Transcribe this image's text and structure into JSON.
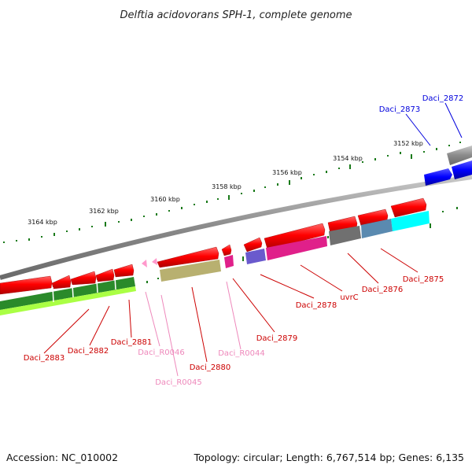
{
  "title": "Delftia acidovorans SPH-1, complete genome",
  "footer": {
    "accession": "Accession: NC_010002",
    "summary": "Topology: circular; Length: 6,767,514 bp; Genes: 6,135"
  },
  "scale_labels": [
    "3152 kbp",
    "3154 kbp",
    "3156 kbp",
    "3158 kbp",
    "3160 kbp",
    "3162 kbp",
    "3164 kbp"
  ],
  "gene_labels": [
    {
      "text": "Daci_2872",
      "color": "#0000dd"
    },
    {
      "text": "Daci_2873",
      "color": "#0000dd"
    },
    {
      "text": "Daci_2875",
      "color": "#cc0000"
    },
    {
      "text": "Daci_2876",
      "color": "#cc0000"
    },
    {
      "text": "uvrC",
      "color": "#cc0000"
    },
    {
      "text": "Daci_2878",
      "color": "#cc0000"
    },
    {
      "text": "Daci_2879",
      "color": "#cc0000"
    },
    {
      "text": "Daci_R0044",
      "color": "#ee88bb"
    },
    {
      "text": "Daci_2880",
      "color": "#cc0000"
    },
    {
      "text": "Daci_R0045",
      "color": "#ee88bb"
    },
    {
      "text": "Daci_R0046",
      "color": "#ee88bb"
    },
    {
      "text": "Daci_2881",
      "color": "#cc0000"
    },
    {
      "text": "Daci_2882",
      "color": "#cc0000"
    },
    {
      "text": "Daci_2883",
      "color": "#cc0000"
    }
  ],
  "colors": {
    "cds": "#ff0000",
    "rna": "#ff88cc",
    "backbone": "#8a8a8a",
    "scale_ticks": "#1a7a1a",
    "cog_magenta": "#e0208a",
    "cog_cyan": "#00ffff",
    "cog_steel": "#5a8ab0",
    "cog_gray": "#707070",
    "cog_olive": "#b8b070",
    "cog_purple": "#6a5acd",
    "cog_green": "#2a8a2a",
    "cog_lime": "#aaff44",
    "blue_cds": "#0000ff"
  }
}
